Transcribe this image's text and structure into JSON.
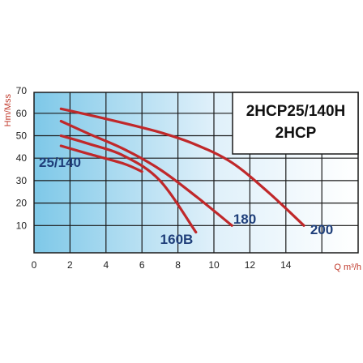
{
  "chart_data": {
    "type": "line",
    "title_lines": [
      "2HCP25/140H",
      "2HCP"
    ],
    "xlabel": "Q m³/h",
    "ylabel": "Hm/Mss",
    "xlim": [
      0,
      18
    ],
    "ylim": [
      0,
      70
    ],
    "x_ticks": [
      0,
      2,
      4,
      6,
      8,
      10,
      12,
      14
    ],
    "y_ticks": [
      10,
      20,
      30,
      40,
      50,
      60,
      70
    ],
    "grid": true,
    "series": [
      {
        "name": "200",
        "color": "#c0282a",
        "x": [
          1.5,
          4,
          7,
          9,
          11,
          13,
          15
        ],
        "y": [
          62,
          57.5,
          51.5,
          46,
          38,
          25,
          10
        ]
      },
      {
        "name": "180",
        "color": "#c0282a",
        "x": [
          1.5,
          3,
          5,
          7,
          9,
          11
        ],
        "y": [
          56.5,
          51,
          44,
          35,
          23,
          10
        ]
      },
      {
        "name": "160B",
        "color": "#c0282a",
        "x": [
          1.5,
          3,
          5,
          7,
          9
        ],
        "y": [
          50,
          46.5,
          41,
          30,
          7
        ]
      },
      {
        "name": "25/140",
        "color": "#c0282a",
        "x": [
          1.5,
          3,
          5,
          6
        ],
        "y": [
          45.5,
          42,
          37.5,
          34
        ]
      }
    ]
  }
}
